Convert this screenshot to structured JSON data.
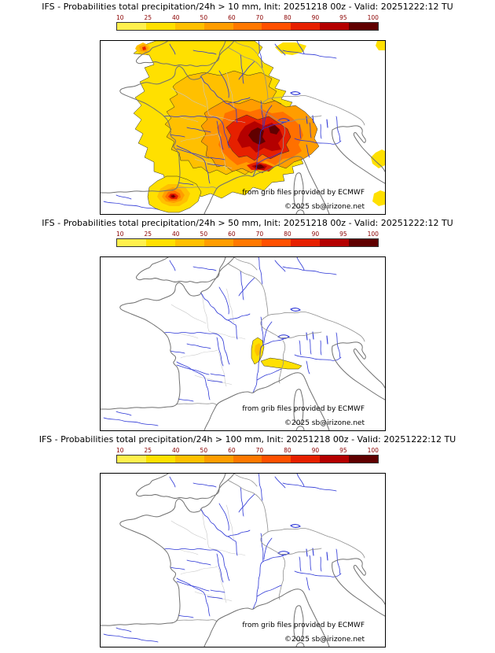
{
  "panels": [
    {
      "title": "IFS - Probabilities total precipitation/24h > 10 mm, Init: 20251218 00z - Valid: 20251222:12 TU"
    },
    {
      "title": "IFS - Probabilities total precipitation/24h > 50 mm, Init: 20251218 00z - Valid: 20251222:12 TU"
    },
    {
      "title": "IFS - Probabilities total precipitation/24h > 100 mm, Init: 20251218 00z - Valid: 20251222:12 TU"
    }
  ],
  "legend": {
    "ticks": [
      "10",
      "25",
      "40",
      "50",
      "60",
      "70",
      "80",
      "90",
      "95",
      "100"
    ],
    "segment_colors": [
      "#fff04d",
      "#ffe000",
      "#ffc000",
      "#ff9d00",
      "#ff7800",
      "#ff5000",
      "#e62000",
      "#b40000",
      "#600000"
    ],
    "tick_color": "#8b0000"
  },
  "attribution": {
    "line1": "from grib files provided by ECMWF",
    "line2": "©2025 sb@irizone.net"
  },
  "map_colors": {
    "river": "#2b35d6",
    "coastline": "#707070",
    "country_border": "#909090",
    "admin_border": "#c9c9c9"
  }
}
